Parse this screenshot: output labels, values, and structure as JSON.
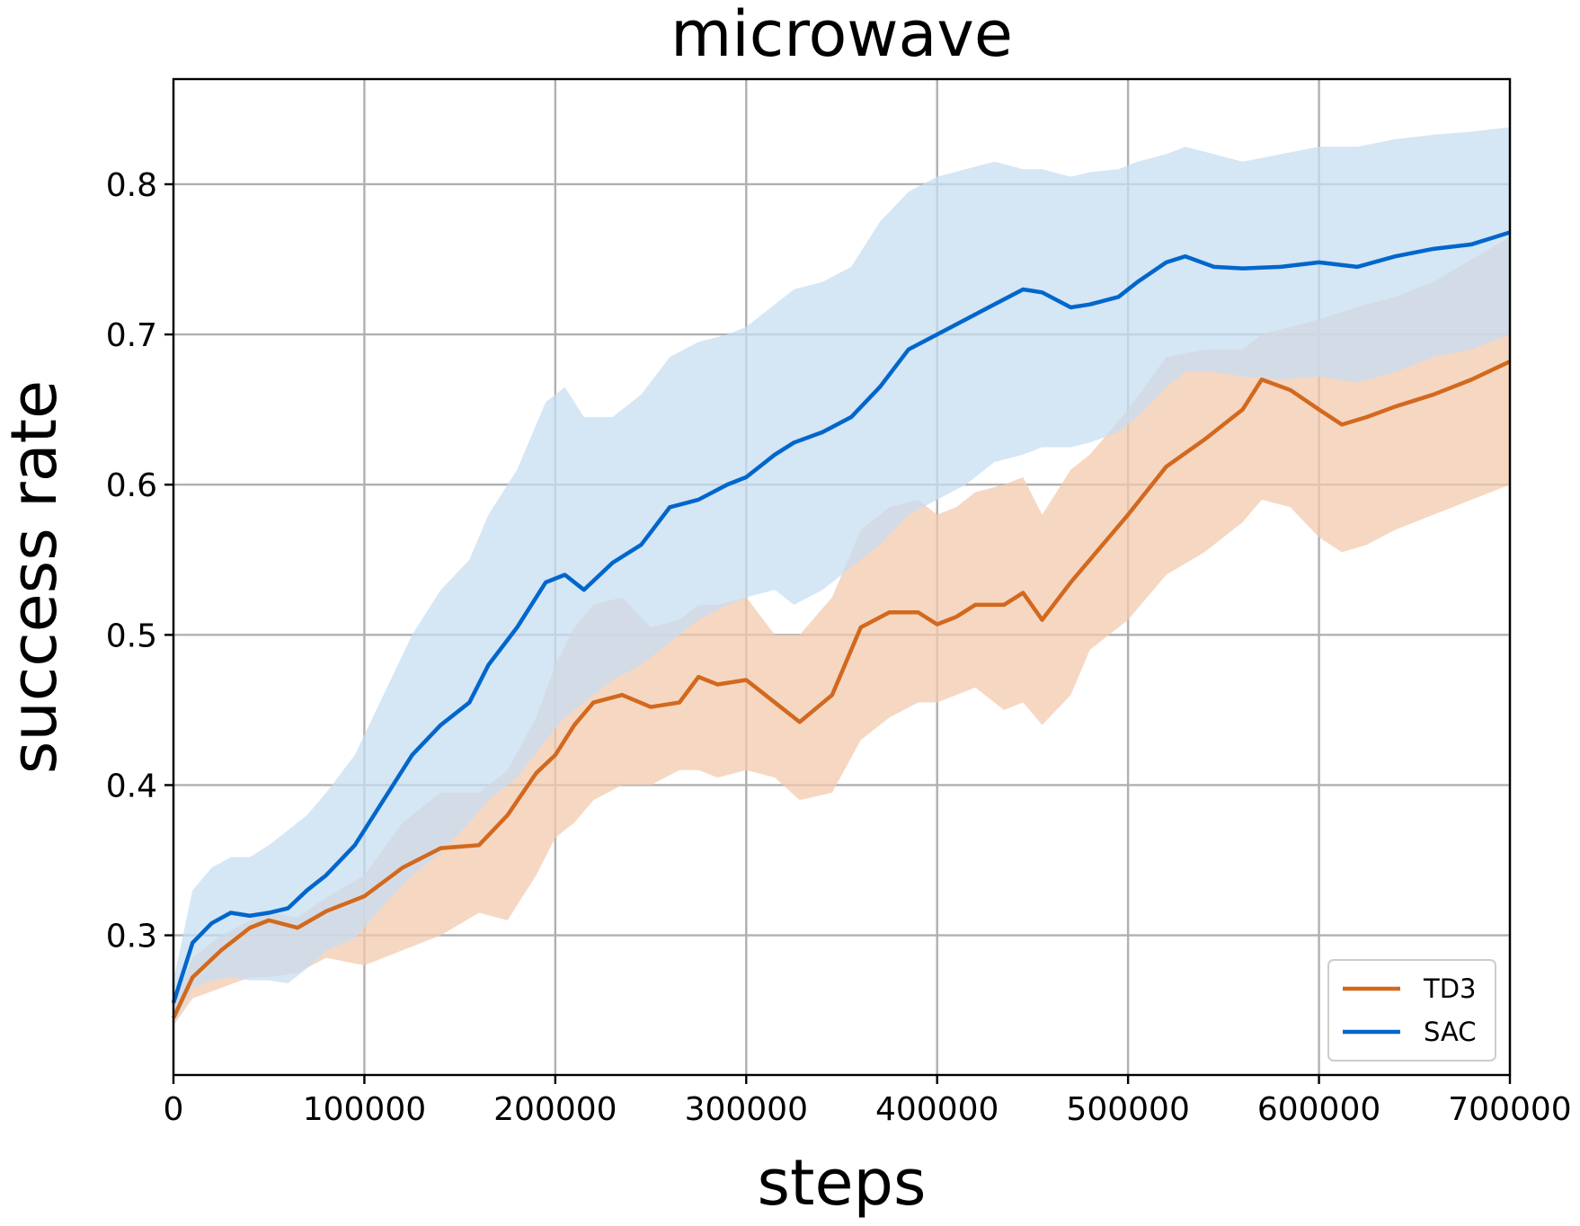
{
  "chart_data": {
    "type": "line",
    "title": "microwave",
    "xlabel": "steps",
    "ylabel": "success rate",
    "xlim": [
      0,
      700000
    ],
    "ylim": [
      0.207,
      0.87
    ],
    "xticks": [
      0,
      100000,
      200000,
      300000,
      400000,
      500000,
      600000,
      700000
    ],
    "xtick_labels": [
      "0",
      "100000",
      "200000",
      "300000",
      "400000",
      "500000",
      "600000",
      "700000"
    ],
    "yticks": [
      0.3,
      0.4,
      0.5,
      0.6,
      0.7,
      0.8
    ],
    "ytick_labels": [
      "0.3",
      "0.4",
      "0.5",
      "0.6",
      "0.7",
      "0.8"
    ],
    "grid": true,
    "legend_position": "bottom-right",
    "series": [
      {
        "name": "TD3",
        "color": "#d2691e",
        "band_color": "#f3c9ad",
        "x": [
          0,
          10000,
          25000,
          40000,
          50000,
          65000,
          80000,
          100000,
          120000,
          140000,
          160000,
          175000,
          190000,
          200000,
          210000,
          220000,
          235000,
          250000,
          265000,
          275000,
          285000,
          300000,
          315000,
          328000,
          345000,
          360000,
          375000,
          390000,
          400000,
          410000,
          420000,
          435000,
          445000,
          455000,
          470000,
          480000,
          500000,
          520000,
          540000,
          560000,
          570000,
          585000,
          600000,
          612000,
          625000,
          640000,
          660000,
          680000,
          700000
        ],
        "y": [
          0.245,
          0.272,
          0.29,
          0.305,
          0.31,
          0.305,
          0.316,
          0.326,
          0.345,
          0.358,
          0.36,
          0.38,
          0.408,
          0.42,
          0.44,
          0.455,
          0.46,
          0.452,
          0.455,
          0.472,
          0.467,
          0.47,
          0.455,
          0.442,
          0.46,
          0.505,
          0.515,
          0.515,
          0.507,
          0.512,
          0.52,
          0.52,
          0.528,
          0.51,
          0.535,
          0.55,
          0.58,
          0.612,
          0.63,
          0.65,
          0.67,
          0.663,
          0.65,
          0.64,
          0.645,
          0.652,
          0.66,
          0.67,
          0.682
        ],
        "lower": [
          0.24,
          0.258,
          0.265,
          0.272,
          0.272,
          0.275,
          0.285,
          0.28,
          0.29,
          0.3,
          0.315,
          0.31,
          0.34,
          0.365,
          0.375,
          0.39,
          0.4,
          0.4,
          0.41,
          0.41,
          0.405,
          0.41,
          0.405,
          0.39,
          0.395,
          0.43,
          0.445,
          0.455,
          0.455,
          0.46,
          0.465,
          0.45,
          0.455,
          0.44,
          0.46,
          0.49,
          0.51,
          0.54,
          0.555,
          0.575,
          0.59,
          0.585,
          0.565,
          0.555,
          0.56,
          0.57,
          0.58,
          0.59,
          0.6
        ],
        "upper": [
          0.255,
          0.285,
          0.3,
          0.31,
          0.315,
          0.312,
          0.325,
          0.34,
          0.375,
          0.395,
          0.395,
          0.41,
          0.445,
          0.48,
          0.505,
          0.52,
          0.525,
          0.505,
          0.51,
          0.52,
          0.52,
          0.525,
          0.5,
          0.5,
          0.525,
          0.57,
          0.585,
          0.59,
          0.58,
          0.585,
          0.595,
          0.6,
          0.605,
          0.58,
          0.61,
          0.62,
          0.65,
          0.685,
          0.69,
          0.69,
          0.7,
          0.705,
          0.71,
          0.715,
          0.72,
          0.725,
          0.735,
          0.75,
          0.765
        ]
      },
      {
        "name": "SAC",
        "color": "#0066cc",
        "band_color": "#c7ddf2",
        "x": [
          0,
          10000,
          20000,
          30000,
          40000,
          50000,
          60000,
          70000,
          80000,
          95000,
          110000,
          125000,
          140000,
          155000,
          165000,
          180000,
          195000,
          205000,
          215000,
          230000,
          245000,
          260000,
          275000,
          290000,
          300000,
          315000,
          325000,
          340000,
          355000,
          370000,
          385000,
          400000,
          415000,
          430000,
          445000,
          455000,
          470000,
          480000,
          495000,
          505000,
          520000,
          530000,
          545000,
          560000,
          580000,
          600000,
          620000,
          640000,
          660000,
          680000,
          700000
        ],
        "y": [
          0.255,
          0.295,
          0.308,
          0.315,
          0.313,
          0.315,
          0.318,
          0.33,
          0.34,
          0.36,
          0.39,
          0.42,
          0.44,
          0.455,
          0.48,
          0.505,
          0.535,
          0.54,
          0.53,
          0.548,
          0.56,
          0.585,
          0.59,
          0.6,
          0.605,
          0.62,
          0.628,
          0.635,
          0.645,
          0.665,
          0.69,
          0.7,
          0.71,
          0.72,
          0.73,
          0.728,
          0.718,
          0.72,
          0.725,
          0.735,
          0.748,
          0.752,
          0.745,
          0.744,
          0.745,
          0.748,
          0.745,
          0.752,
          0.757,
          0.76,
          0.768
        ],
        "lower": [
          0.24,
          0.265,
          0.27,
          0.272,
          0.27,
          0.27,
          0.268,
          0.278,
          0.29,
          0.298,
          0.32,
          0.34,
          0.355,
          0.375,
          0.39,
          0.405,
          0.43,
          0.445,
          0.455,
          0.47,
          0.48,
          0.495,
          0.51,
          0.52,
          0.525,
          0.53,
          0.52,
          0.53,
          0.545,
          0.56,
          0.58,
          0.59,
          0.6,
          0.615,
          0.62,
          0.625,
          0.625,
          0.628,
          0.635,
          0.645,
          0.665,
          0.675,
          0.675,
          0.672,
          0.67,
          0.672,
          0.668,
          0.675,
          0.685,
          0.69,
          0.7
        ],
        "upper": [
          0.27,
          0.33,
          0.345,
          0.352,
          0.352,
          0.36,
          0.37,
          0.38,
          0.395,
          0.42,
          0.46,
          0.5,
          0.53,
          0.55,
          0.58,
          0.61,
          0.655,
          0.665,
          0.645,
          0.645,
          0.66,
          0.685,
          0.695,
          0.7,
          0.705,
          0.72,
          0.73,
          0.735,
          0.745,
          0.775,
          0.795,
          0.805,
          0.81,
          0.815,
          0.81,
          0.81,
          0.805,
          0.808,
          0.81,
          0.815,
          0.82,
          0.825,
          0.82,
          0.815,
          0.82,
          0.825,
          0.825,
          0.83,
          0.833,
          0.835,
          0.838
        ]
      }
    ]
  }
}
